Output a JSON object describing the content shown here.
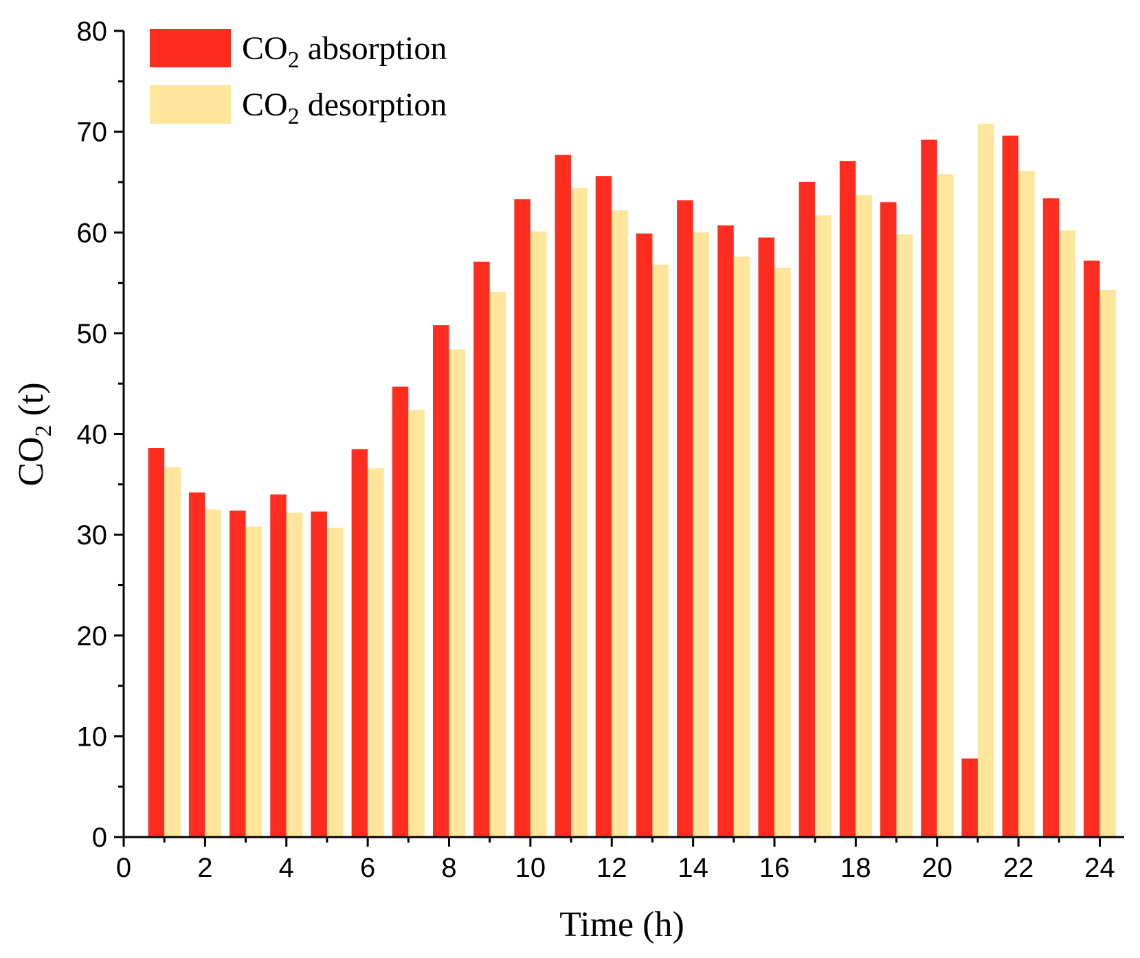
{
  "chart_data": {
    "type": "bar",
    "x": [
      1,
      2,
      3,
      4,
      5,
      6,
      7,
      8,
      9,
      10,
      11,
      12,
      13,
      14,
      15,
      16,
      17,
      18,
      19,
      20,
      21,
      22,
      23,
      24
    ],
    "series": [
      {
        "name": "CO2 absorption",
        "label_main": "CO",
        "label_sub": "2",
        "label_rest": " absorption",
        "color": "#ff2d1f",
        "values": [
          38.6,
          34.2,
          32.4,
          34.0,
          32.3,
          38.5,
          44.7,
          50.8,
          57.1,
          63.3,
          67.7,
          65.6,
          59.9,
          63.2,
          60.7,
          59.5,
          65.0,
          67.1,
          63.0,
          69.2,
          7.8,
          69.6,
          63.4,
          57.2
        ]
      },
      {
        "name": "CO2 desorption",
        "label_main": "CO",
        "label_sub": "2",
        "label_rest": " desorption",
        "color": "#ffe69a",
        "values": [
          36.7,
          32.5,
          30.8,
          32.2,
          30.7,
          36.6,
          42.4,
          48.4,
          54.1,
          60.1,
          64.4,
          62.2,
          56.8,
          60.0,
          57.6,
          56.5,
          61.7,
          63.7,
          59.8,
          65.8,
          70.8,
          66.1,
          60.2,
          54.3
        ]
      }
    ],
    "xlim": [
      0,
      24.6
    ],
    "ylim": [
      0,
      80
    ],
    "xticks": [
      "0",
      "2",
      "4",
      "6",
      "8",
      "10",
      "12",
      "14",
      "16",
      "18",
      "20",
      "22",
      "24"
    ],
    "yticks": [
      "0",
      "10",
      "20",
      "30",
      "40",
      "50",
      "60",
      "70",
      "80"
    ],
    "xlabel": "Time (h)",
    "ylabel_main": "CO",
    "ylabel_sub": "2",
    "ylabel_rest": " (t)",
    "grid": false,
    "legend_position": "top-left"
  }
}
